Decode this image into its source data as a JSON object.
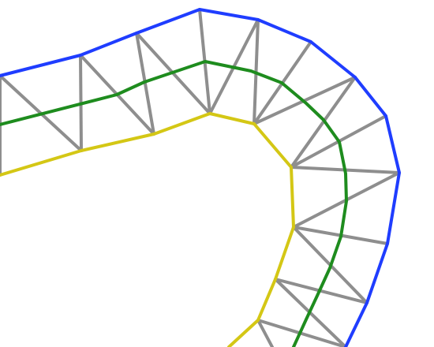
{
  "colors": {
    "background": "#ffffff",
    "outer_edge": "#1f3dff",
    "inner_edge": "#d4c715",
    "center_line": "#1e8c1e",
    "bracing": "#8e8e8e"
  },
  "diagram": {
    "description_visible_text": "",
    "outer_node_count": 13,
    "inner_node_count": 11
  }
}
